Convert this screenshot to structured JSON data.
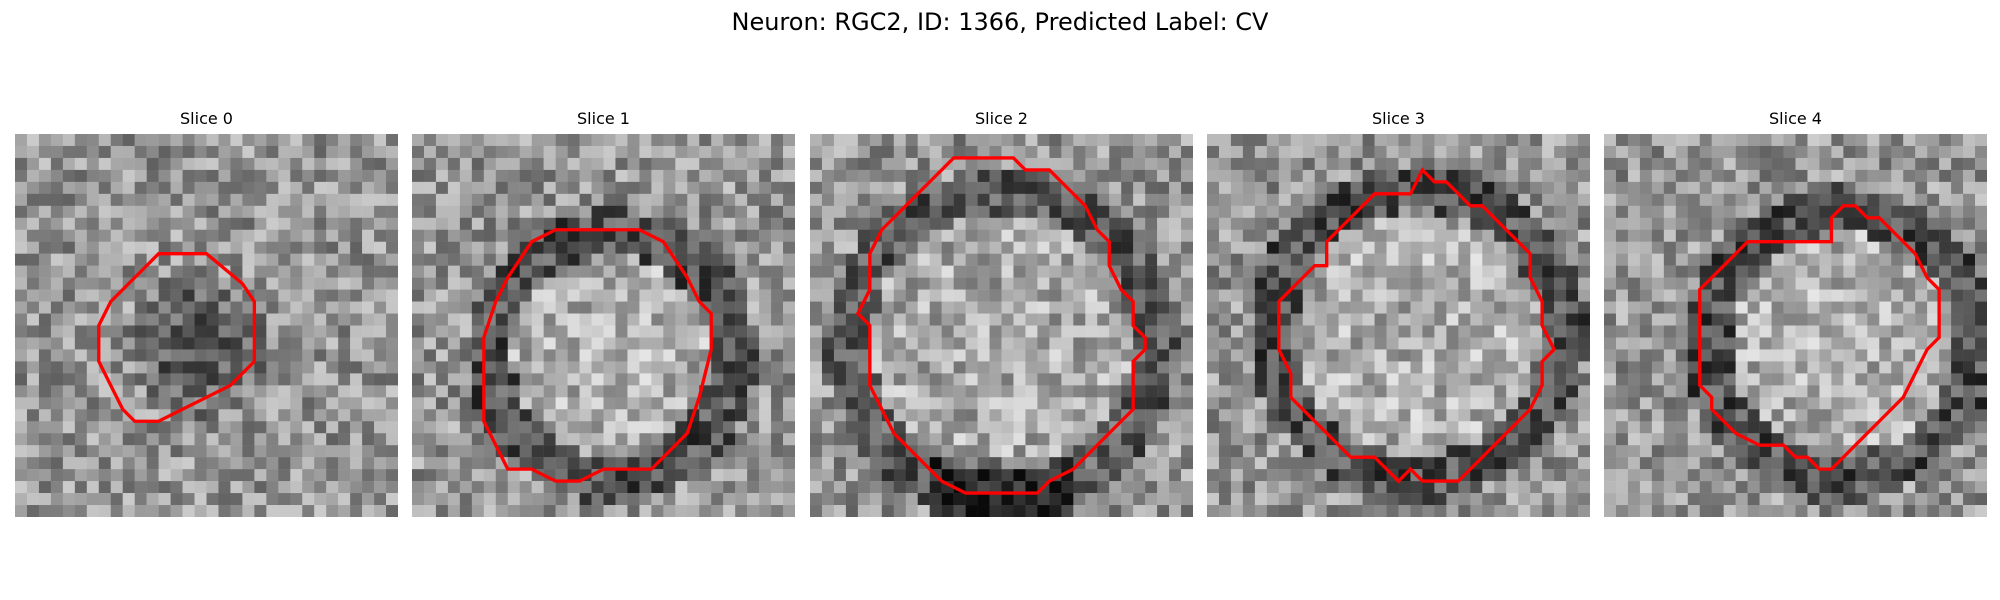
{
  "figure": {
    "title": "Neuron: RGC2, ID: 1366, Predicted Label: CV"
  },
  "panels": [
    {
      "title": "Slice 0",
      "variant": "dark-blob",
      "dark_center": [
        0.48,
        0.55
      ],
      "dark_radius": 0.19
    },
    {
      "title": "Slice 1",
      "variant": "ring",
      "ring_center": [
        0.52,
        0.58
      ],
      "ring_radius": 0.32
    },
    {
      "title": "Slice 2",
      "variant": "bright-blob",
      "bright_center": [
        0.5,
        0.55
      ],
      "bright_radius": 0.4
    },
    {
      "title": "Slice 3",
      "variant": "ring",
      "ring_center": [
        0.55,
        0.52
      ],
      "ring_radius": 0.38
    },
    {
      "title": "Slice 4",
      "variant": "ring",
      "ring_center": [
        0.62,
        0.55
      ],
      "ring_radius": 0.35
    }
  ],
  "contour_color": "#ff0000"
}
